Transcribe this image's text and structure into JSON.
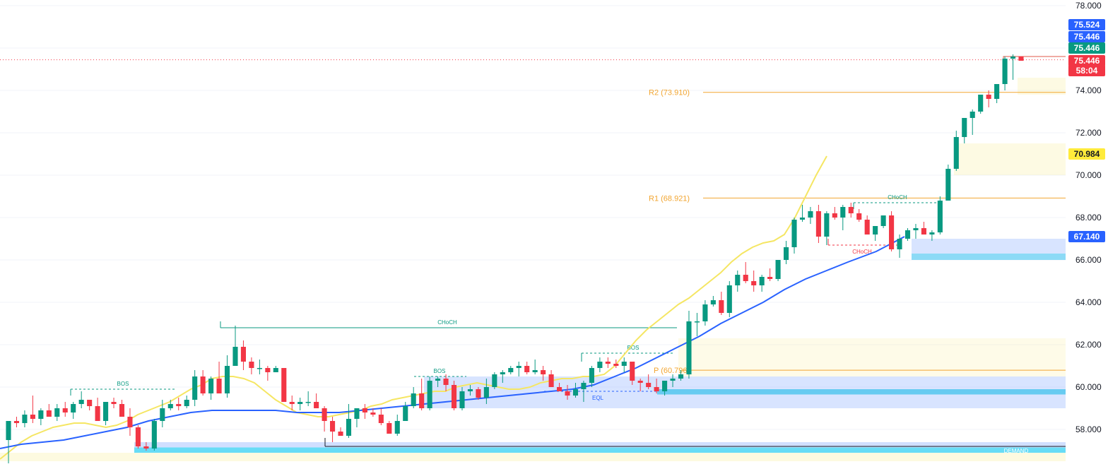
{
  "chart_data": {
    "type": "candlestick",
    "ylim": [
      56.5,
      78.0
    ],
    "y_ticks": [
      "78.000",
      "76.000",
      "74.000",
      "72.000",
      "70.000",
      "68.000",
      "66.000",
      "64.000",
      "62.000",
      "60.000",
      "58.000"
    ],
    "y_tick_values": [
      78,
      76,
      74,
      72,
      70,
      68,
      66,
      64,
      62,
      60,
      58
    ],
    "colors": {
      "up": "#089981",
      "down": "#f23645",
      "ema_fast": "#f5e663",
      "ema_slow": "#2962ff",
      "pivot": "#f2a530",
      "demand": "#bfe4ff"
    },
    "candles": [
      [
        57.5,
        58.4,
        56.4,
        58.4
      ],
      [
        58.4,
        58.6,
        58.1,
        58.3
      ],
      [
        58.3,
        58.9,
        58.1,
        58.7
      ],
      [
        58.7,
        59.6,
        58.3,
        58.5
      ],
      [
        58.5,
        59.0,
        58.2,
        58.9
      ],
      [
        58.9,
        59.2,
        58.6,
        58.6
      ],
      [
        58.6,
        59.2,
        58.4,
        59.0
      ],
      [
        59.0,
        59.3,
        58.6,
        58.8
      ],
      [
        58.8,
        59.3,
        58.5,
        59.2
      ],
      [
        59.2,
        59.8,
        59.0,
        59.4
      ],
      [
        59.4,
        59.4,
        58.9,
        59.1
      ],
      [
        59.1,
        59.5,
        58.5,
        58.4
      ],
      [
        58.4,
        59.3,
        58.2,
        59.3
      ],
      [
        59.3,
        59.5,
        59.0,
        59.2
      ],
      [
        59.2,
        59.4,
        58.8,
        58.6
      ],
      [
        58.6,
        59.0,
        57.7,
        58.1
      ],
      [
        58.1,
        58.2,
        57.1,
        57.2
      ],
      [
        57.2,
        57.4,
        57.0,
        57.1
      ],
      [
        57.1,
        58.5,
        57.0,
        58.4
      ],
      [
        58.4,
        59.4,
        58.1,
        59.0
      ],
      [
        59.0,
        59.4,
        58.9,
        59.2
      ],
      [
        59.2,
        59.5,
        58.9,
        59.1
      ],
      [
        59.1,
        59.6,
        59.0,
        59.4
      ],
      [
        59.4,
        60.8,
        59.1,
        60.5
      ],
      [
        60.5,
        60.8,
        59.6,
        59.7
      ],
      [
        59.7,
        60.5,
        59.4,
        60.4
      ],
      [
        60.4,
        61.2,
        59.8,
        59.7
      ],
      [
        59.7,
        61.5,
        59.5,
        61.0
      ],
      [
        61.0,
        62.9,
        61.1,
        61.9
      ],
      [
        61.9,
        62.2,
        60.8,
        61.2
      ],
      [
        61.2,
        61.4,
        60.6,
        60.9
      ],
      [
        60.9,
        61.3,
        60.6,
        60.9
      ],
      [
        60.9,
        61.0,
        60.3,
        60.7
      ],
      [
        60.7,
        61.0,
        60.8,
        60.9
      ],
      [
        60.9,
        60.9,
        59.4,
        59.3
      ],
      [
        59.3,
        59.6,
        58.9,
        59.2
      ],
      [
        59.2,
        59.5,
        58.9,
        59.3
      ],
      [
        59.3,
        59.8,
        59.1,
        59.3
      ],
      [
        59.3,
        59.7,
        59.0,
        59.0
      ],
      [
        59.0,
        59.1,
        57.9,
        58.4
      ],
      [
        58.4,
        58.6,
        57.4,
        57.9
      ],
      [
        57.9,
        58.1,
        57.7,
        57.7
      ],
      [
        57.7,
        59.2,
        57.6,
        58.5
      ],
      [
        58.5,
        59.0,
        58.1,
        59.0
      ],
      [
        59.0,
        59.2,
        58.5,
        58.8
      ],
      [
        58.8,
        59.0,
        58.6,
        58.7
      ],
      [
        58.7,
        59.0,
        58.2,
        58.3
      ],
      [
        58.3,
        58.4,
        57.8,
        57.8
      ],
      [
        57.8,
        58.7,
        57.7,
        58.4
      ],
      [
        58.4,
        59.3,
        58.4,
        59.1
      ],
      [
        59.1,
        60.0,
        59.0,
        59.7
      ],
      [
        59.7,
        60.4,
        58.9,
        59.0
      ],
      [
        59.0,
        60.5,
        58.9,
        60.3
      ],
      [
        60.3,
        60.5,
        60.0,
        60.4
      ],
      [
        60.4,
        60.6,
        59.8,
        60.1
      ],
      [
        60.1,
        60.3,
        58.9,
        59.0
      ],
      [
        59.0,
        60.0,
        58.9,
        59.8
      ],
      [
        59.8,
        60.1,
        59.6,
        59.9
      ],
      [
        59.9,
        60.0,
        59.4,
        59.5
      ],
      [
        59.5,
        60.4,
        59.2,
        60.0
      ],
      [
        60.0,
        60.7,
        59.9,
        60.6
      ],
      [
        60.6,
        60.8,
        60.2,
        60.7
      ],
      [
        60.7,
        61.0,
        60.6,
        60.9
      ],
      [
        60.9,
        61.2,
        60.5,
        61.0
      ],
      [
        61.0,
        61.2,
        60.6,
        60.7
      ],
      [
        60.7,
        61.3,
        60.6,
        60.8
      ],
      [
        60.8,
        61.0,
        60.3,
        60.6
      ],
      [
        60.6,
        60.8,
        60.1,
        60.0
      ],
      [
        60.0,
        60.2,
        59.9,
        59.8
      ],
      [
        59.8,
        60.1,
        59.4,
        59.6
      ],
      [
        59.6,
        60.2,
        59.5,
        59.9
      ],
      [
        59.9,
        60.3,
        59.3,
        60.2
      ],
      [
        60.2,
        61.0,
        60.0,
        60.9
      ],
      [
        60.9,
        61.4,
        60.7,
        61.2
      ],
      [
        61.2,
        61.4,
        60.9,
        61.1
      ],
      [
        61.1,
        61.3,
        60.9,
        61.0
      ],
      [
        61.0,
        61.4,
        60.7,
        61.2
      ],
      [
        61.2,
        61.0,
        60.1,
        60.3
      ],
      [
        60.3,
        60.4,
        59.8,
        60.2
      ],
      [
        60.2,
        60.6,
        59.9,
        60.0
      ],
      [
        60.0,
        60.4,
        59.7,
        59.8
      ],
      [
        59.8,
        60.3,
        59.6,
        60.3
      ],
      [
        60.3,
        60.6,
        60.0,
        60.4
      ],
      [
        60.4,
        60.8,
        60.3,
        60.6
      ],
      [
        60.6,
        63.6,
        60.4,
        63.1
      ],
      [
        63.1,
        63.5,
        62.4,
        63.1
      ],
      [
        63.1,
        64.1,
        62.9,
        63.9
      ],
      [
        63.9,
        64.3,
        63.8,
        64.1
      ],
      [
        64.1,
        64.5,
        63.4,
        63.5
      ],
      [
        63.5,
        65.0,
        63.3,
        64.8
      ],
      [
        64.8,
        65.5,
        64.5,
        65.3
      ],
      [
        65.3,
        65.9,
        64.9,
        65.0
      ],
      [
        65.0,
        65.5,
        64.5,
        64.8
      ],
      [
        64.8,
        65.3,
        64.5,
        65.2
      ],
      [
        65.2,
        65.6,
        65.0,
        65.1
      ],
      [
        65.1,
        66.0,
        65.0,
        66.0
      ],
      [
        66.0,
        66.9,
        65.8,
        66.6
      ],
      [
        66.6,
        68.0,
        66.3,
        67.9
      ],
      [
        67.9,
        68.6,
        67.8,
        68.0
      ],
      [
        68.0,
        68.5,
        67.7,
        68.3
      ],
      [
        68.3,
        68.6,
        66.8,
        67.1
      ],
      [
        67.1,
        68.3,
        66.7,
        68.2
      ],
      [
        68.2,
        68.5,
        67.9,
        68.0
      ],
      [
        68.0,
        68.6,
        67.4,
        68.5
      ],
      [
        68.5,
        68.7,
        68.0,
        68.2
      ],
      [
        68.2,
        68.4,
        67.8,
        67.9
      ],
      [
        67.9,
        68.1,
        67.2,
        67.2
      ],
      [
        67.2,
        67.6,
        66.9,
        67.6
      ],
      [
        67.6,
        68.1,
        67.5,
        68.1
      ],
      [
        68.1,
        68.3,
        66.4,
        66.5
      ],
      [
        66.5,
        67.2,
        66.1,
        67.0
      ],
      [
        67.0,
        67.5,
        66.9,
        67.4
      ],
      [
        67.4,
        67.7,
        67.0,
        67.5
      ],
      [
        67.5,
        67.8,
        67.4,
        67.2
      ],
      [
        67.2,
        67.4,
        66.9,
        67.3
      ],
      [
        67.3,
        69.0,
        67.2,
        68.8
      ],
      [
        68.8,
        70.5,
        69.0,
        70.3
      ],
      [
        70.3,
        72.1,
        70.2,
        71.8
      ],
      [
        71.8,
        72.7,
        71.5,
        72.7
      ],
      [
        72.7,
        73.1,
        71.9,
        73.0
      ],
      [
        73.0,
        73.8,
        72.9,
        73.8
      ],
      [
        73.8,
        74.0,
        73.2,
        73.6
      ],
      [
        73.6,
        74.2,
        73.4,
        74.3
      ],
      [
        74.3,
        75.6,
        74.0,
        75.5
      ],
      [
        75.5,
        75.7,
        74.5,
        75.6
      ],
      [
        75.6,
        75.5,
        75.4,
        75.4
      ]
    ],
    "ema_fast": [
      56.6,
      57.0,
      57.4,
      57.7,
      57.9,
      58.1,
      58.2,
      58.3,
      58.3,
      58.2,
      58.1,
      58.2,
      58.4,
      58.7,
      58.9,
      59.1,
      59.3,
      59.6,
      59.9,
      60.1,
      60.4,
      60.5,
      60.5,
      60.4,
      60.2,
      59.8,
      59.4,
      59.1,
      58.8,
      58.7,
      58.6,
      58.6,
      58.7,
      58.8,
      58.9,
      59.1,
      59.2,
      59.4,
      59.5,
      59.6,
      59.7,
      59.8,
      59.8,
      60.0,
      60.1,
      60.2,
      60.1,
      60.0,
      59.9,
      59.9,
      60.0,
      60.2,
      60.3,
      60.4,
      60.4,
      60.5,
      60.5,
      60.6,
      61.0,
      61.6,
      62.2,
      62.7,
      63.1,
      63.5,
      63.9,
      64.2,
      64.6,
      65.0,
      65.4,
      65.9,
      66.3,
      66.6,
      66.8,
      66.9,
      67.2,
      68.0,
      69.0,
      70.0,
      70.9
    ],
    "ema_fast_x": [
      0,
      15,
      30,
      45,
      60,
      75,
      90,
      105,
      120,
      135,
      150,
      165,
      180,
      195,
      210,
      225,
      240,
      255,
      270,
      285,
      300,
      315,
      330,
      345,
      360,
      375,
      390,
      405,
      420,
      435,
      450,
      465,
      480,
      495,
      510,
      525,
      540,
      555,
      570,
      585,
      600,
      615,
      630,
      645,
      660,
      675,
      690,
      705,
      720,
      735,
      750,
      765,
      780,
      795,
      810,
      825,
      840,
      855,
      870,
      885,
      900,
      915,
      930,
      945,
      960,
      975,
      990,
      1005,
      1020,
      1035,
      1050,
      1065,
      1080,
      1095,
      1110,
      1125,
      1140,
      1155,
      1170
    ],
    "ema_slow": [
      57.1,
      57.3,
      57.4,
      57.5,
      57.7,
      57.9,
      58.1,
      58.4,
      58.6,
      58.8,
      58.9,
      58.9,
      58.9,
      58.9,
      58.8,
      58.8,
      58.8,
      58.9,
      59.0,
      59.1,
      59.2,
      59.3,
      59.4,
      59.5,
      59.6,
      59.7,
      59.8,
      59.9,
      60.1,
      60.5,
      60.9,
      61.4,
      61.9,
      62.4,
      63.0,
      63.5,
      64.0,
      64.6,
      65.1,
      65.5,
      65.9,
      66.4,
      67.1
    ],
    "ema_slow_x": [
      0,
      30,
      60,
      90,
      120,
      150,
      180,
      210,
      240,
      270,
      300,
      330,
      360,
      390,
      420,
      450,
      480,
      510,
      540,
      570,
      600,
      630,
      660,
      690,
      720,
      750,
      780,
      810,
      840,
      870,
      900,
      930,
      960,
      990,
      1020,
      1050,
      1080,
      1110,
      1140,
      1170,
      1200,
      1240,
      1280
    ],
    "pivot_levels": [
      {
        "label": "R2 (73.910)",
        "value": 73.91
      },
      {
        "label": "R1 (68.921)",
        "value": 68.921
      },
      {
        "label": "P (60.796)",
        "value": 60.796
      }
    ],
    "structure_labels": [
      {
        "label": "CHoCH",
        "value": 62.8,
        "color": "#089981"
      },
      {
        "label": "BOS",
        "value": 59.9,
        "color": "#089981"
      },
      {
        "label": "BOS",
        "value": 60.5,
        "color": "#089981"
      },
      {
        "label": "BOS",
        "value": 61.6,
        "color": "#089981"
      },
      {
        "label": "CHoCH",
        "value": 68.7,
        "color": "#089981"
      },
      {
        "label": "CHoCH",
        "value": 66.7,
        "color": "#f23645"
      },
      {
        "label": "EQL",
        "value": 59.8,
        "color": "#2962ff"
      }
    ],
    "demand_label": "DEMAND",
    "price_tags": [
      {
        "text": "75.524",
        "value": 75.524,
        "color": "#2962ff"
      },
      {
        "text": "75.446",
        "value": 75.446,
        "color": "#2962ff"
      },
      {
        "text": "75.446",
        "value": 75.446,
        "color": "#089981"
      },
      {
        "text": "75.446",
        "value": 75.446,
        "color": "#f23645"
      },
      {
        "text": "58:04",
        "value": 75.446,
        "color": "#f23645"
      },
      {
        "text": "70.984",
        "value": 70.984,
        "color": "#ffeb3b"
      },
      {
        "text": "67.140",
        "value": 67.14,
        "color": "#2962ff"
      }
    ]
  }
}
